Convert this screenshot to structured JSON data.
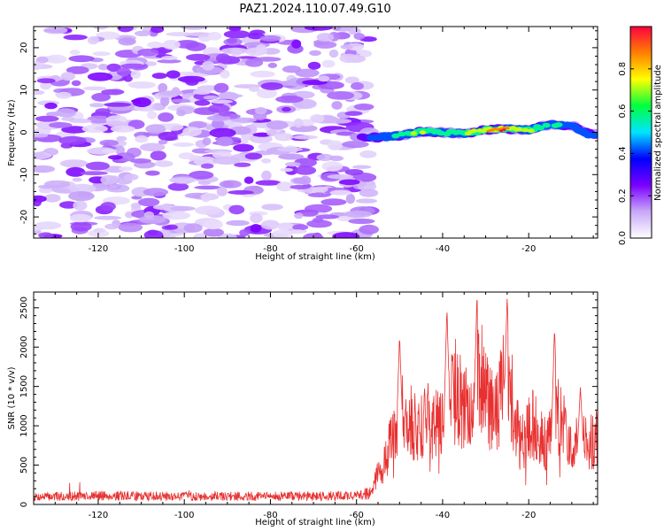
{
  "figure": {
    "title": "PAZ1.2024.110.07.49.G10"
  },
  "chart_data": [
    {
      "type": "heatmap",
      "panel": "spectrogram",
      "xlabel": "Height of straight line (km)",
      "ylabel": "Frequency (Hz)",
      "xlim": [
        -135,
        -4
      ],
      "ylim": [
        -25,
        25
      ],
      "x_ticks": [
        -120,
        -100,
        -80,
        -60,
        -40,
        -20
      ],
      "y_ticks": [
        -20,
        -10,
        0,
        10,
        20
      ],
      "colorbar": {
        "label": "Normalized spectral amplitude",
        "range": [
          0,
          1
        ],
        "ticks": [
          "0.0",
          "0.2",
          "0.4",
          "0.6",
          "0.8"
        ],
        "colormap": [
          "#ffffff",
          "#c8a8f8",
          "#7a00ff",
          "#0000ff",
          "#00e5ff",
          "#00ff40",
          "#ffff00",
          "#ff8000",
          "#ff0040"
        ]
      },
      "noise_region_x": [
        -135,
        -57
      ],
      "noise_amplitude_range": [
        0.05,
        0.25
      ],
      "signal_region_x": [
        -60,
        -4
      ],
      "signal_frequency_trace": [
        {
          "x": -59,
          "f": -1.0
        },
        {
          "x": -55,
          "f": -1.2
        },
        {
          "x": -50,
          "f": -0.8
        },
        {
          "x": -45,
          "f": 0.2
        },
        {
          "x": -40,
          "f": 0.0
        },
        {
          "x": -35,
          "f": -0.4
        },
        {
          "x": -30,
          "f": 0.6
        },
        {
          "x": -25,
          "f": 0.8
        },
        {
          "x": -20,
          "f": 0.6
        },
        {
          "x": -15,
          "f": 1.8
        },
        {
          "x": -10,
          "f": 1.5
        },
        {
          "x": -6,
          "f": -0.4
        }
      ],
      "signal_peak_amplitude": [
        {
          "x": -59,
          "a": 0.25
        },
        {
          "x": -55,
          "a": 0.45
        },
        {
          "x": -50,
          "a": 0.55
        },
        {
          "x": -45,
          "a": 0.7
        },
        {
          "x": -40,
          "a": 0.6
        },
        {
          "x": -35,
          "a": 0.65
        },
        {
          "x": -30,
          "a": 0.85
        },
        {
          "x": -26,
          "a": 1.0
        },
        {
          "x": -22,
          "a": 0.8
        },
        {
          "x": -17,
          "a": 0.6
        },
        {
          "x": -12,
          "a": 0.55
        },
        {
          "x": -6,
          "a": 0.45
        }
      ]
    },
    {
      "type": "line",
      "panel": "snr",
      "xlabel": "Height of straight line (km)",
      "ylabel": "SNR (10 * v/v)",
      "xlim": [
        -135,
        -4
      ],
      "ylim": [
        0,
        2700
      ],
      "x_ticks": [
        -120,
        -100,
        -80,
        -60,
        -40,
        -20
      ],
      "y_ticks": [
        0,
        500,
        1000,
        1500,
        2000,
        2500
      ],
      "series": [
        {
          "color": "#e83030",
          "envelope": [
            {
              "x": -135,
              "v": 120
            },
            {
              "x": -120,
              "v": 140
            },
            {
              "x": -100,
              "v": 130
            },
            {
              "x": -80,
              "v": 130
            },
            {
              "x": -60,
              "v": 140
            },
            {
              "x": -57,
              "v": 180
            },
            {
              "x": -55,
              "v": 450
            },
            {
              "x": -52,
              "v": 900
            },
            {
              "x": -49,
              "v": 1500
            },
            {
              "x": -46,
              "v": 1100
            },
            {
              "x": -43,
              "v": 1300
            },
            {
              "x": -40,
              "v": 1150
            },
            {
              "x": -37,
              "v": 1700
            },
            {
              "x": -34,
              "v": 1400
            },
            {
              "x": -31,
              "v": 1900
            },
            {
              "x": -28,
              "v": 1300
            },
            {
              "x": -25,
              "v": 2000
            },
            {
              "x": -22,
              "v": 900
            },
            {
              "x": -19,
              "v": 1200
            },
            {
              "x": -16,
              "v": 900
            },
            {
              "x": -13,
              "v": 1300
            },
            {
              "x": -10,
              "v": 850
            },
            {
              "x": -7,
              "v": 1000
            },
            {
              "x": -4,
              "v": 950
            }
          ],
          "peaks": [
            {
              "x": -50,
              "v": 2150
            },
            {
              "x": -39,
              "v": 2500
            },
            {
              "x": -32,
              "v": 2680
            },
            {
              "x": -25,
              "v": 2650
            },
            {
              "x": -14,
              "v": 2250
            },
            {
              "x": -8,
              "v": 1500
            }
          ]
        }
      ]
    }
  ]
}
